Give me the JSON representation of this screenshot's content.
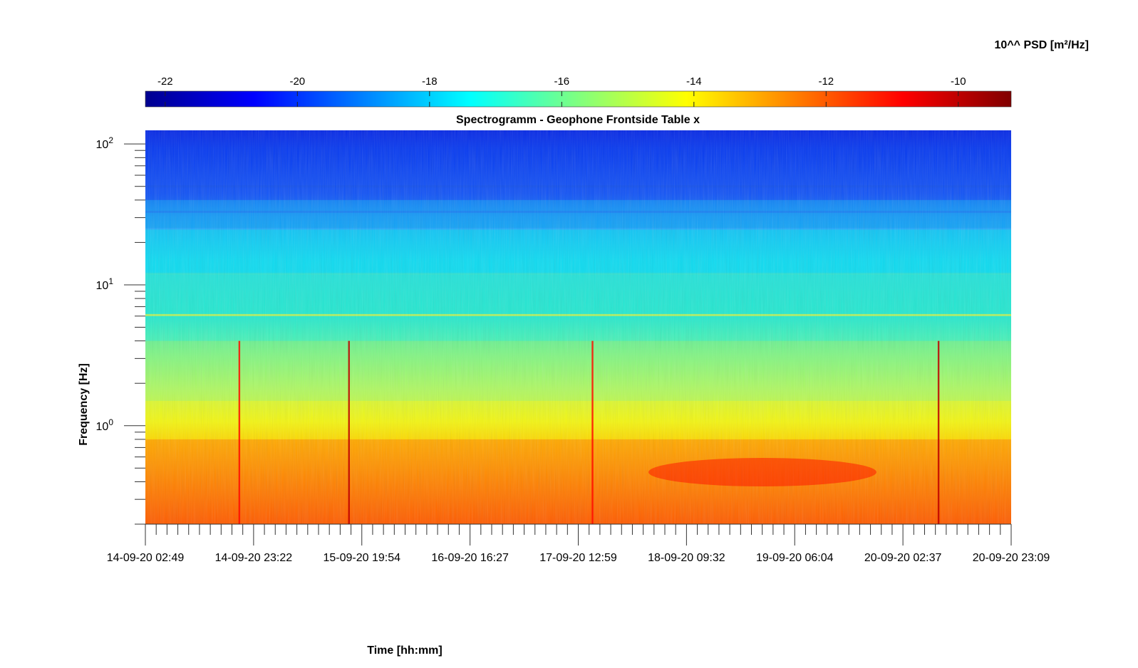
{
  "chart_data": {
    "type": "heatmap",
    "title": "Spectrogramm - Geophone Frontside Table x",
    "xlabel": "Time [hh:mm]",
    "ylabel": "Frequency [Hz]",
    "x_tick_labels": [
      "14-09-20 02:49",
      "14-09-20 23:22",
      "15-09-20 19:54",
      "16-09-20 16:27",
      "17-09-20 12:59",
      "18-09-20 09:32",
      "19-09-20 06:04",
      "20-09-20 02:37",
      "20-09-20 23:09"
    ],
    "y_scale": "log",
    "y_tick_labels": [
      {
        "base": "10",
        "exp": "2",
        "value": 100
      },
      {
        "base": "10",
        "exp": "1",
        "value": 10
      },
      {
        "base": "10",
        "exp": "0",
        "value": 1
      }
    ],
    "ylim": [
      0.2,
      125
    ],
    "colorbar": {
      "label": "10^^ PSD [m²/Hz]",
      "ticks": [
        -22,
        -20,
        -18,
        -16,
        -14,
        -12,
        -10
      ],
      "tick_labels": [
        "-22",
        "-20",
        "-18",
        "-16",
        "-14",
        "-12",
        "-10"
      ],
      "range": [
        -22.3,
        -9.2
      ],
      "colormap": "jet"
    },
    "grid": false,
    "background_bands": [
      {
        "f_low": 40,
        "f_high": 125,
        "level": -20.2
      },
      {
        "f_low": 25,
        "f_high": 40,
        "level": -18.8
      },
      {
        "f_low": 12,
        "f_high": 25,
        "level": -17.6
      },
      {
        "f_low": 4,
        "f_high": 12,
        "level": -16.6
      },
      {
        "f_low": 1.5,
        "f_high": 4,
        "level": -15.3
      },
      {
        "f_low": 0.8,
        "f_high": 1.5,
        "level": -14.2
      },
      {
        "f_low": 0.2,
        "f_high": 0.8,
        "level": -12.4
      }
    ],
    "events": [
      {
        "time": "14-09-20 23:22",
        "level": -11
      },
      {
        "time": "15-09-20 19:54",
        "level": -10
      },
      {
        "time": "17-09-20 12:59",
        "level": -11
      },
      {
        "time": "20-09-20 02:37",
        "level": -10
      }
    ]
  }
}
